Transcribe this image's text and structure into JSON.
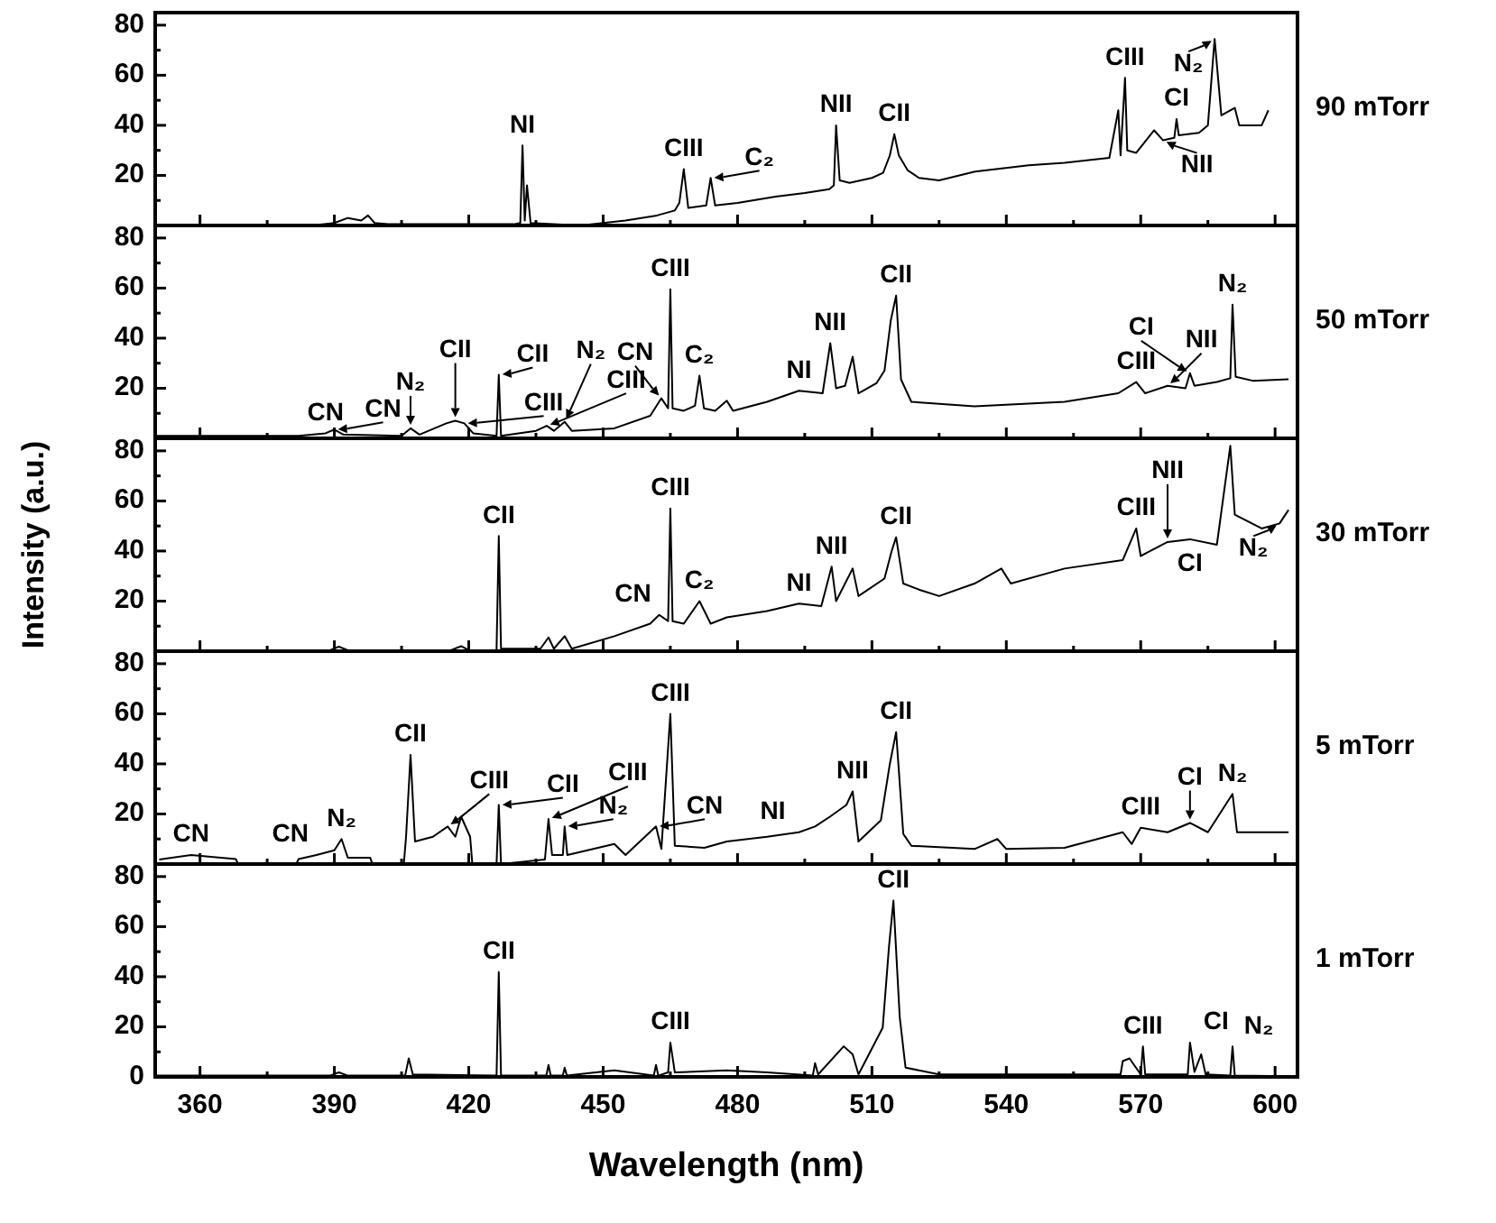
{
  "chart_data": [
    {
      "type": "line",
      "color": "#000000",
      "xlim": [
        350,
        605
      ],
      "ylim": [
        0,
        85
      ],
      "xticks": [
        360,
        {
          "value": 375,
          "label": null
        },
        390,
        {
          "value": 405,
          "label": null
        },
        420,
        {
          "value": 435,
          "label": null
        },
        450,
        {
          "value": 465,
          "label": null
        },
        480,
        {
          "value": 495,
          "label": null
        },
        510,
        {
          "value": 525,
          "label": null
        },
        540,
        {
          "value": 555,
          "label": null
        },
        570,
        {
          "value": 585,
          "label": null
        },
        600
      ],
      "yticks": [
        {
          "value": 10,
          "label": null
        },
        20,
        {
          "value": 30,
          "label": null
        },
        40,
        {
          "value": 50,
          "label": null
        },
        60,
        {
          "value": 70,
          "label": null
        },
        80
      ],
      "tick_labels": "y",
      "x": [
        350,
        385,
        390,
        393,
        396,
        397.5,
        399,
        402,
        430,
        431.5,
        432,
        432.5,
        433,
        433.8,
        445,
        455,
        462,
        466,
        467,
        468,
        469,
        473,
        474,
        475,
        480,
        488.5,
        495,
        500.5,
        501.5,
        502,
        502.8,
        505,
        510,
        512.5,
        514,
        515,
        516,
        518,
        520.5,
        525,
        533,
        545,
        553,
        563,
        565,
        565.5,
        566.5,
        567,
        569,
        573,
        575,
        577.5,
        578,
        578.5,
        583,
        585,
        586.5,
        588,
        591,
        592,
        597,
        598.5
      ],
      "values": [
        0,
        0,
        1,
        3,
        2,
        4,
        1,
        0.5,
        0.5,
        1,
        32,
        2,
        16,
        1,
        0,
        2,
        4,
        6,
        9,
        22.5,
        7,
        8,
        19,
        8,
        9,
        11.5,
        13,
        14.5,
        16,
        40,
        18,
        17,
        19,
        21,
        28,
        36.5,
        28,
        22,
        19,
        18,
        21.5,
        24,
        25,
        27,
        46,
        28,
        59,
        30,
        29,
        38,
        34,
        35,
        42.5,
        36,
        37,
        40,
        74.5,
        44,
        47,
        40,
        40,
        46
      ],
      "annotations": [
        "90 mTorr",
        {
          "text": "NI",
          "x": 432,
          "y": 32
        },
        {
          "text": "CIII",
          "x": 468,
          "y": 22.5
        },
        {
          "text": "C₂",
          "x": 474,
          "y": 19
        },
        {
          "text": "NII",
          "x": 502,
          "y": 40
        },
        {
          "text": "CII",
          "x": 515,
          "y": 36.5
        },
        {
          "text": "CIII",
          "x": 566.5,
          "y": 59
        },
        {
          "text": "CI",
          "x": 578,
          "y": 42.5
        },
        {
          "text": "N₂",
          "x": 586.5,
          "y": 74.5
        },
        {
          "text": "NII",
          "x": 575,
          "y": 34
        }
      ]
    },
    {
      "type": "line",
      "color": "#000000",
      "xlim": [
        350,
        605
      ],
      "ylim": [
        0,
        85
      ],
      "xticks": [
        360,
        {
          "value": 375,
          "label": null
        },
        390,
        {
          "value": 405,
          "label": null
        },
        420,
        {
          "value": 435,
          "label": null
        },
        450,
        {
          "value": 465,
          "label": null
        },
        480,
        {
          "value": 495,
          "label": null
        },
        510,
        {
          "value": 525,
          "label": null
        },
        540,
        {
          "value": 555,
          "label": null
        },
        570,
        {
          "value": 585,
          "label": null
        },
        600
      ],
      "yticks": [
        {
          "value": 10,
          "label": null
        },
        20,
        {
          "value": 30,
          "label": null
        },
        40,
        {
          "value": 50,
          "label": null
        },
        60,
        {
          "value": 70,
          "label": null
        },
        80
      ],
      "tick_labels": "y",
      "x": [
        350,
        358,
        382,
        388,
        390,
        392,
        405,
        407,
        409,
        415,
        417,
        419,
        421,
        426.2,
        426.7,
        427.2,
        435,
        437.4,
        439,
        441.4,
        443,
        452.5,
        460.5,
        463,
        464.5,
        465,
        465.5,
        468,
        470.5,
        471.5,
        472.5,
        475,
        477.6,
        479,
        486.6,
        493.7,
        499,
        500.7,
        502,
        504,
        505.7,
        507,
        511,
        512.8,
        514.2,
        515.4,
        516.5,
        518.8,
        532.9,
        553,
        565,
        569,
        571,
        576,
        580,
        581,
        582,
        587,
        590,
        590.5,
        591.2,
        595,
        603
      ],
      "values": [
        1,
        1,
        1,
        2,
        3.5,
        1.5,
        1,
        4,
        1.5,
        6,
        7,
        6,
        2,
        1,
        25.4,
        1,
        3,
        5,
        3,
        6.6,
        3,
        4,
        9,
        16,
        12,
        59.5,
        12,
        11,
        13,
        25,
        12,
        11,
        15,
        11,
        14.6,
        19,
        18,
        38,
        20,
        21,
        32.6,
        18,
        22,
        27,
        47,
        57,
        23.5,
        14.6,
        12.8,
        14.6,
        18,
        22.5,
        18,
        21,
        20,
        26,
        21,
        22.5,
        24,
        53.4,
        24.6,
        23,
        23.6
      ],
      "annotations": [
        "50 mTorr",
        {
          "text": "CN",
          "x": 388,
          "y": 2
        },
        {
          "text": "CN",
          "x": 390,
          "y": 3.5
        },
        {
          "text": "N₂",
          "x": 407,
          "y": 4
        },
        {
          "text": "CII",
          "x": 417,
          "y": 7
        },
        {
          "text": "CIII",
          "x": 419,
          "y": 6
        },
        {
          "text": "CII",
          "x": 426.7,
          "y": 25.4
        },
        {
          "text": "CIII",
          "x": 437.4,
          "y": 5
        },
        {
          "text": "N₂",
          "x": 441.4,
          "y": 6.6
        },
        {
          "text": "CN",
          "x": 463,
          "y": 16
        },
        {
          "text": "CIII",
          "x": 465,
          "y": 59.5
        },
        {
          "text": "C₂",
          "x": 471.5,
          "y": 25
        },
        {
          "text": "NI",
          "x": 493.7,
          "y": 19
        },
        {
          "text": "NII",
          "x": 500.7,
          "y": 38
        },
        {
          "text": "CII",
          "x": 515.4,
          "y": 57
        },
        {
          "text": "CIII",
          "x": 569,
          "y": 22.5
        },
        {
          "text": "NII",
          "x": 576,
          "y": 21
        },
        {
          "text": "CI",
          "x": 581,
          "y": 26
        },
        {
          "text": "N₂",
          "x": 590.5,
          "y": 53.4
        }
      ]
    },
    {
      "type": "line",
      "ylabel": "Intensity (a.u.)",
      "color": "#000000",
      "xlim": [
        350,
        605
      ],
      "ylim": [
        0,
        85
      ],
      "xticks": [
        360,
        {
          "value": 375,
          "label": null
        },
        390,
        {
          "value": 405,
          "label": null
        },
        420,
        {
          "value": 435,
          "label": null
        },
        450,
        {
          "value": 465,
          "label": null
        },
        480,
        {
          "value": 495,
          "label": null
        },
        510,
        {
          "value": 525,
          "label": null
        },
        540,
        {
          "value": 555,
          "label": null
        },
        570,
        {
          "value": 585,
          "label": null
        },
        600
      ],
      "yticks": [
        {
          "value": 10,
          "label": null
        },
        20,
        {
          "value": 30,
          "label": null
        },
        40,
        {
          "value": 50,
          "label": null
        },
        60,
        {
          "value": 70,
          "label": null
        },
        80
      ],
      "tick_labels": "y",
      "x": [
        350,
        389,
        391,
        393,
        416,
        418.3,
        420,
        426.2,
        426.7,
        427.2,
        436,
        437.8,
        439,
        441.4,
        443,
        452.5,
        460.5,
        462.5,
        464.5,
        465,
        465.5,
        468,
        471.5,
        474,
        477.6,
        486.6,
        493.7,
        498.7,
        501,
        502,
        505.7,
        507,
        512.8,
        514.4,
        515.4,
        517,
        520.8,
        525,
        532.9,
        538.9,
        541,
        553,
        566,
        569,
        570,
        576,
        581,
        587,
        590,
        591,
        597,
        601,
        603
      ],
      "values": [
        0.4,
        0.4,
        1.8,
        0.4,
        0.4,
        2,
        0.4,
        0.4,
        46,
        1,
        1,
        5.5,
        1,
        6,
        1,
        6,
        11,
        14.5,
        12,
        57,
        12,
        11,
        20,
        11,
        13.5,
        16,
        19,
        18,
        33.8,
        20,
        33,
        22,
        29,
        40,
        45.5,
        27,
        24.4,
        22,
        27,
        33,
        27,
        33,
        36.4,
        49,
        38,
        43.6,
        44.7,
        42.5,
        82,
        54.5,
        49,
        51,
        56.4
      ],
      "annotations": [
        "30 mTorr",
        {
          "text": "CII",
          "x": 426.7,
          "y": 46
        },
        {
          "text": "CN",
          "x": 462.5,
          "y": 14.5
        },
        {
          "text": "CIII",
          "x": 465,
          "y": 57
        },
        {
          "text": "C₂",
          "x": 471.5,
          "y": 20
        },
        {
          "text": "NI",
          "x": 493.7,
          "y": 19
        },
        {
          "text": "NII",
          "x": 501,
          "y": 33.8
        },
        {
          "text": "CII",
          "x": 515.4,
          "y": 45.5
        },
        {
          "text": "CIII",
          "x": 569,
          "y": 49
        },
        {
          "text": "NII",
          "x": 576,
          "y": 43.6
        },
        {
          "text": "CI",
          "x": 581,
          "y": 44.7
        },
        {
          "text": "N₂",
          "x": 601,
          "y": 51
        }
      ]
    },
    {
      "type": "line",
      "color": "#000000",
      "xlim": [
        350,
        605
      ],
      "ylim": [
        0,
        85
      ],
      "xticks": [
        360,
        {
          "value": 375,
          "label": null
        },
        390,
        {
          "value": 405,
          "label": null
        },
        420,
        {
          "value": 435,
          "label": null
        },
        450,
        {
          "value": 465,
          "label": null
        },
        480,
        {
          "value": 495,
          "label": null
        },
        510,
        {
          "value": 525,
          "label": null
        },
        540,
        {
          "value": 555,
          "label": null
        },
        570,
        {
          "value": 585,
          "label": null
        },
        600
      ],
      "yticks": [
        {
          "value": 10,
          "label": null
        },
        20,
        {
          "value": 30,
          "label": null
        },
        40,
        {
          "value": 50,
          "label": null
        },
        60,
        {
          "value": 70,
          "label": null
        },
        80
      ],
      "tick_labels": "y",
      "x": [
        350.9,
        358,
        368,
        368.5,
        381.5,
        382,
        386,
        390,
        391.6,
        393,
        398,
        398.5,
        405.5,
        406,
        407,
        408,
        412,
        415.3,
        417,
        418.3,
        420.3,
        420.8,
        426.2,
        426.7,
        427.2,
        437,
        437.8,
        438.6,
        441,
        441.4,
        442,
        452.5,
        455,
        461.8,
        463,
        465,
        466,
        472.6,
        477.6,
        486.6,
        493.7,
        497.3,
        500.7,
        504.3,
        505.7,
        507,
        512,
        514,
        515.4,
        517,
        518.8,
        532.9,
        538,
        540,
        553,
        566,
        568,
        570,
        576,
        581,
        585,
        590.5,
        591.5,
        603
      ],
      "values": [
        1.8,
        3.6,
        2,
        0,
        0,
        2,
        3.6,
        5.5,
        10,
        2.5,
        2.5,
        0,
        0,
        10.9,
        43.6,
        9,
        10.9,
        15,
        10.9,
        18.9,
        10.9,
        0,
        0,
        23.6,
        0,
        1.8,
        18,
        3.6,
        3.6,
        15,
        3.6,
        8,
        3.6,
        15,
        6,
        60,
        7.3,
        6.5,
        9,
        10.9,
        12.7,
        15,
        19,
        23.6,
        29,
        9,
        17.5,
        40,
        52.7,
        12,
        7.3,
        6,
        10,
        6,
        6.5,
        12.7,
        8,
        14.5,
        12.7,
        16.4,
        12.7,
        28,
        12.7,
        12.7
      ],
      "annotations": [
        "5 mTorr",
        {
          "text": "CN",
          "x": 358,
          "y": 3.6
        },
        {
          "text": "CN",
          "x": 386,
          "y": 3.6
        },
        {
          "text": "N₂",
          "x": 391.6,
          "y": 10
        },
        {
          "text": "CII",
          "x": 407,
          "y": 43.6
        },
        {
          "text": "CIII",
          "x": 415.3,
          "y": 15
        },
        {
          "text": "CII",
          "x": 426.7,
          "y": 23.6
        },
        {
          "text": "CIII",
          "x": 437.8,
          "y": 18
        },
        {
          "text": "N₂",
          "x": 441.4,
          "y": 15
        },
        {
          "text": "CN",
          "x": 461.8,
          "y": 15
        },
        {
          "text": "CIII",
          "x": 465,
          "y": 60
        },
        {
          "text": "NI",
          "x": 493.7,
          "y": 12.7
        },
        {
          "text": "NII",
          "x": 505.7,
          "y": 29
        },
        {
          "text": "CII",
          "x": 515.4,
          "y": 52.7
        },
        {
          "text": "CIII",
          "x": 570,
          "y": 14.5
        },
        {
          "text": "CI",
          "x": 581,
          "y": 16.4
        },
        {
          "text": "N₂",
          "x": 590.5,
          "y": 28
        }
      ]
    },
    {
      "type": "line",
      "xlabel": "Wavelength (nm)",
      "color": "#000000",
      "xlim": [
        350,
        605
      ],
      "ylim": [
        0,
        85
      ],
      "xticks": [
        360,
        {
          "value": 375,
          "label": null
        },
        390,
        {
          "value": 405,
          "label": null
        },
        420,
        {
          "value": 435,
          "label": null
        },
        450,
        {
          "value": 465,
          "label": null
        },
        480,
        {
          "value": 495,
          "label": null
        },
        510,
        {
          "value": 525,
          "label": null
        },
        540,
        {
          "value": 555,
          "label": null
        },
        570,
        {
          "value": 585,
          "label": null
        },
        600
      ],
      "yticks": [
        0,
        {
          "value": 10,
          "label": null
        },
        20,
        {
          "value": 30,
          "label": null
        },
        40,
        {
          "value": 50,
          "label": null
        },
        60,
        {
          "value": 70,
          "label": null
        },
        80
      ],
      "x": [
        350,
        389,
        391,
        393,
        405.8,
        406.6,
        407.5,
        426.2,
        426.7,
        427.2,
        437.3,
        437.8,
        438.3,
        441,
        441.4,
        441.9,
        452.5,
        461.3,
        461.8,
        462.3,
        464.5,
        465,
        466,
        477.6,
        486.6,
        496.8,
        497.3,
        498,
        503.7,
        505.7,
        507,
        512.4,
        513.8,
        514.8,
        516.2,
        517.5,
        525,
        565.5,
        566,
        567.5,
        570,
        570.5,
        571,
        580.5,
        581,
        582,
        583.5,
        584.5,
        590,
        590.5,
        591,
        603
      ],
      "values": [
        0.5,
        0.5,
        1.8,
        0.5,
        0.5,
        7.4,
        1,
        0.5,
        41.9,
        0.5,
        0.5,
        4.8,
        0.5,
        0.5,
        3.7,
        0.5,
        2.6,
        0.5,
        4.8,
        0.5,
        1.8,
        13.7,
        1.8,
        2.6,
        1.8,
        0.5,
        5.5,
        1,
        12.2,
        9,
        1,
        19.6,
        51.8,
        70.4,
        24,
        3.7,
        1,
        1,
        6.3,
        7.4,
        1,
        12.2,
        1,
        1,
        13.7,
        2,
        9,
        1,
        0.5,
        12.2,
        0.5,
        0.3
      ],
      "annotations": [
        "1 mTorr",
        {
          "text": "CII",
          "x": 426.7,
          "y": 41.9
        },
        {
          "text": "CIII",
          "x": 465,
          "y": 13.7
        },
        {
          "text": "CII",
          "x": 514.8,
          "y": 70.4
        },
        {
          "text": "CIII",
          "x": 570.5,
          "y": 12.2
        },
        {
          "text": "CI",
          "x": 581,
          "y": 13.7
        },
        {
          "text": "N₂",
          "x": 590.5,
          "y": 12.2
        }
      ]
    }
  ]
}
